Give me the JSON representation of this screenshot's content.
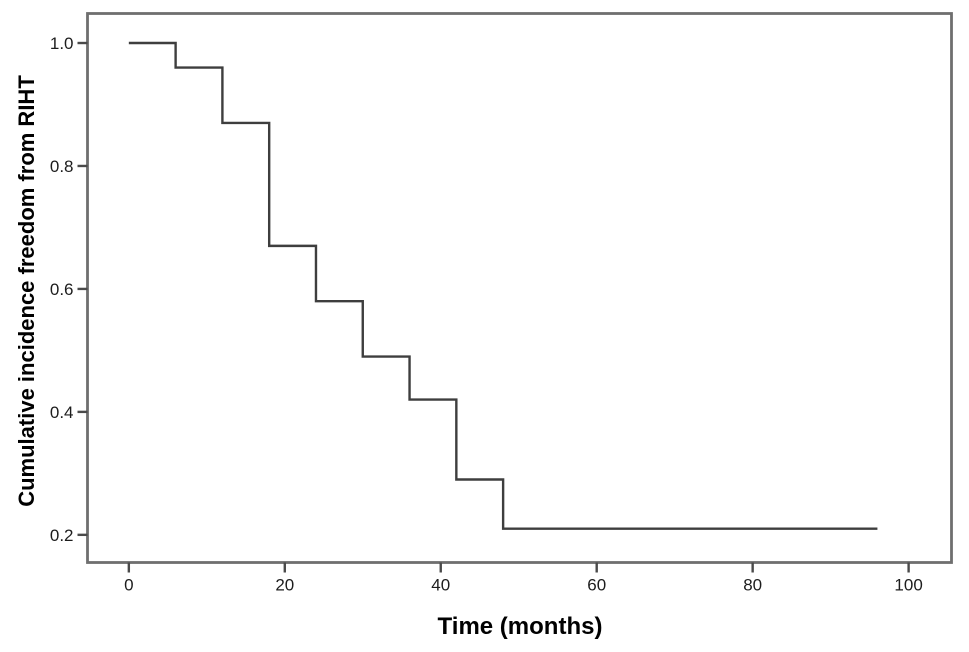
{
  "chart_data": {
    "type": "line",
    "subtype": "kaplan-meier-step",
    "title": "",
    "xlabel": "Time (months)",
    "ylabel": "Cumulative incidence freedom from RIHT",
    "xlim": [
      -5.3,
      105.5
    ],
    "ylim": [
      0.155,
      1.048
    ],
    "x_ticks": [
      0,
      20,
      40,
      60,
      80,
      100
    ],
    "x_tick_labels": [
      "0",
      "20",
      "40",
      "60",
      "80",
      "100"
    ],
    "y_ticks": [
      1.0,
      0.8,
      0.6,
      0.4,
      0.2
    ],
    "y_tick_labels": [
      "1.0",
      "0.8",
      "0.6",
      "0.4",
      "0.2"
    ],
    "grid": false,
    "legend_position": "none",
    "series": [
      {
        "name": "Cumulative incidence freedom from RIHT",
        "step_times": [
          0,
          6,
          12,
          18,
          24,
          30,
          36,
          42,
          48
        ],
        "step_values": [
          1.0,
          0.96,
          0.87,
          0.67,
          0.58,
          0.49,
          0.42,
          0.29,
          0.21
        ],
        "end_time": 96
      }
    ],
    "colors": {
      "curve": "#3e3e3e",
      "frame": "#6f6f6f",
      "tick": "#4a4a4a",
      "text": "#1d1d1d",
      "background": "#ffffff"
    }
  }
}
